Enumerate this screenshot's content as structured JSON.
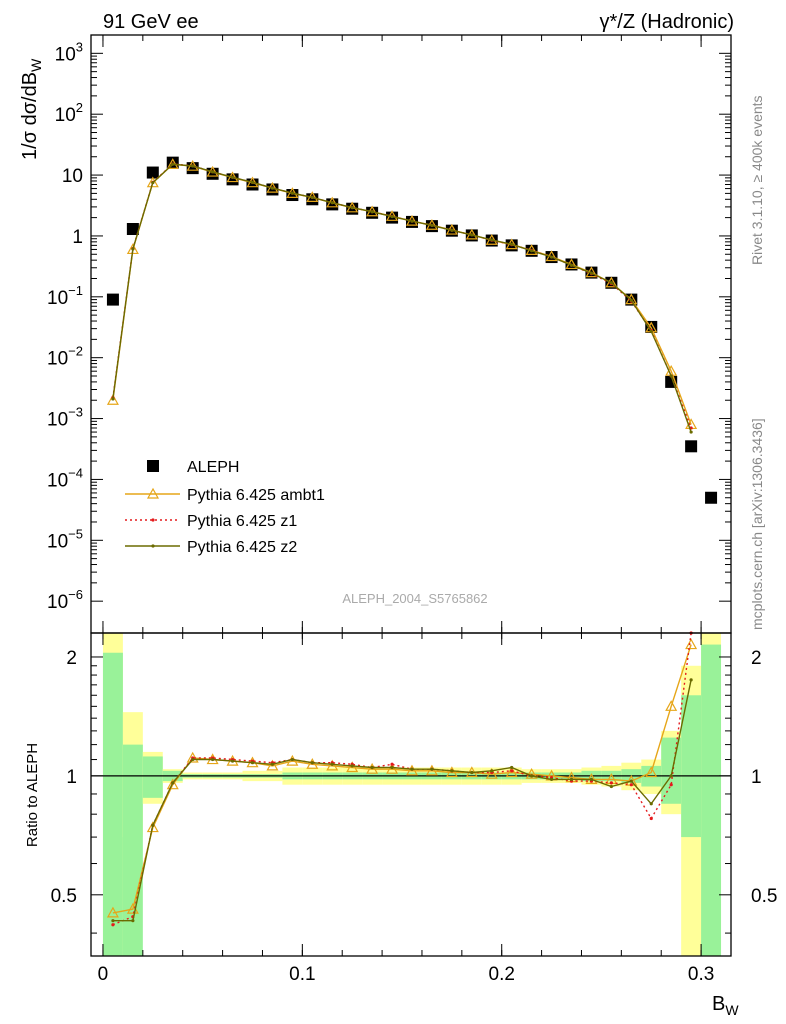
{
  "header": {
    "left": "91 GeV ee",
    "right": "γ*/Z (Hadronic)"
  },
  "side_texts": {
    "rivet": "Rivet 3.1.10, ≥ 400k events",
    "mcplots": "mcplots.cern.ch [arXiv:1306.3436]"
  },
  "analysis_id": "ALEPH_2004_S5765862",
  "top_panel": {
    "ylabel_main": "1/σ  dσ/dB",
    "ylabel_sub": "W",
    "yticks": [
      {
        "base": "10",
        "exp": "3",
        "v": 1000
      },
      {
        "base": "10",
        "exp": "2",
        "v": 100
      },
      {
        "base": "10",
        "exp": "",
        "v": 10
      },
      {
        "base": "1",
        "exp": "",
        "v": 1
      },
      {
        "base": "10",
        "exp": "−1",
        "v": 0.1
      },
      {
        "base": "10",
        "exp": "−2",
        "v": 0.01
      },
      {
        "base": "10",
        "exp": "−3",
        "v": 0.001
      },
      {
        "base": "10",
        "exp": "−4",
        "v": 0.0001
      },
      {
        "base": "10",
        "exp": "−5",
        "v": 1e-05
      },
      {
        "base": "10",
        "exp": "−6",
        "v": 1e-06
      }
    ]
  },
  "bottom_panel": {
    "ylabel": "Ratio to ALEPH",
    "yticks": [
      "2",
      "1",
      "0.5"
    ]
  },
  "x_axis": {
    "label_main": "B",
    "label_sub": "W",
    "ticks": [
      "0",
      "0.1",
      "0.2",
      "0.3"
    ]
  },
  "legend": [
    {
      "label": "ALEPH",
      "key": "data"
    },
    {
      "label": "Pythia 6.425 ambt1",
      "key": "ambt1"
    },
    {
      "label": "Pythia 6.425 z1",
      "key": "z1"
    },
    {
      "label": "Pythia 6.425 z2",
      "key": "z2"
    }
  ],
  "colors": {
    "data": "#000000",
    "ambt1": "#e6a619",
    "z1": "#e41a1c",
    "z2": "#6b6b00",
    "band_inner": "#99f299",
    "band_outer": "#ffff99"
  },
  "chart_data": {
    "type": "line",
    "x_range": [
      -0.006,
      0.315
    ],
    "y_range_log": [
      3e-07,
      2000
    ],
    "ratio_range": [
      0.35,
      2.3
    ],
    "x": [
      0.005,
      0.015,
      0.025,
      0.035,
      0.045,
      0.055,
      0.065,
      0.075,
      0.085,
      0.095,
      0.105,
      0.115,
      0.125,
      0.135,
      0.145,
      0.155,
      0.165,
      0.175,
      0.185,
      0.195,
      0.205,
      0.215,
      0.225,
      0.235,
      0.245,
      0.255,
      0.265,
      0.275,
      0.285,
      0.295,
      0.305
    ],
    "series": [
      {
        "name": "ALEPH",
        "key": "data",
        "values": [
          0.09,
          1.3,
          11,
          16,
          13,
          10.5,
          8.5,
          7,
          5.8,
          4.7,
          4.0,
          3.3,
          2.8,
          2.4,
          2.0,
          1.7,
          1.45,
          1.22,
          1.02,
          0.84,
          0.7,
          0.57,
          0.45,
          0.34,
          0.25,
          0.17,
          0.09,
          0.032,
          0.004,
          0.00035,
          5e-05
        ]
      },
      {
        "name": "Pythia 6.425 ambt1",
        "key": "ambt1",
        "values": [
          0.002,
          0.6,
          7.5,
          15,
          14,
          11.2,
          9.1,
          7.5,
          6.1,
          5.0,
          4.3,
          3.5,
          2.9,
          2.5,
          2.1,
          1.75,
          1.5,
          1.25,
          1.04,
          0.85,
          0.72,
          0.58,
          0.46,
          0.34,
          0.25,
          0.17,
          0.09,
          0.031,
          0.006,
          0.0008,
          null
        ],
        "ratio": [
          0.45,
          0.46,
          0.74,
          0.95,
          1.11,
          1.1,
          1.09,
          1.08,
          1.06,
          1.09,
          1.07,
          1.06,
          1.05,
          1.04,
          1.04,
          1.03,
          1.03,
          1.02,
          1.02,
          1.01,
          1.02,
          1.01,
          1.0,
          0.99,
          0.98,
          0.98,
          0.97,
          1.02,
          1.5,
          2.15,
          null
        ]
      },
      {
        "name": "Pythia 6.425 z1",
        "key": "z1",
        "values": [
          0.0022,
          0.62,
          7.6,
          15.2,
          14.2,
          11.3,
          9.2,
          7.6,
          6.15,
          5.05,
          4.3,
          3.52,
          2.93,
          2.5,
          2.1,
          1.75,
          1.49,
          1.24,
          1.04,
          0.85,
          0.72,
          0.58,
          0.45,
          0.33,
          0.24,
          0.165,
          0.085,
          0.028,
          0.005,
          0.0007,
          null
        ],
        "ratio": [
          0.42,
          0.44,
          0.75,
          0.96,
          1.11,
          1.11,
          1.1,
          1.09,
          1.08,
          1.1,
          1.08,
          1.08,
          1.07,
          1.05,
          1.07,
          1.04,
          1.04,
          1.03,
          1.02,
          1.02,
          1.03,
          1.0,
          0.99,
          0.97,
          0.97,
          0.96,
          0.95,
          0.78,
          0.95,
          2.3,
          null
        ]
      },
      {
        "name": "Pythia 6.425 z2",
        "key": "z2",
        "values": [
          0.0021,
          0.61,
          7.5,
          15.1,
          14.1,
          11.3,
          9.2,
          7.6,
          6.1,
          5.05,
          4.3,
          3.52,
          2.92,
          2.5,
          2.08,
          1.75,
          1.49,
          1.24,
          1.04,
          0.86,
          0.73,
          0.57,
          0.45,
          0.33,
          0.245,
          0.17,
          0.088,
          0.027,
          0.005,
          0.0006,
          null
        ],
        "ratio": [
          0.43,
          0.43,
          0.75,
          0.96,
          1.1,
          1.1,
          1.09,
          1.08,
          1.07,
          1.1,
          1.08,
          1.07,
          1.06,
          1.05,
          1.05,
          1.04,
          1.04,
          1.03,
          1.02,
          1.03,
          1.05,
          1.0,
          0.98,
          0.98,
          0.98,
          0.94,
          0.97,
          0.85,
          1.0,
          1.75,
          null
        ]
      }
    ],
    "ratio_bands": {
      "bins": [
        0.0,
        0.01,
        0.02,
        0.03,
        0.04,
        0.05,
        0.06,
        0.07,
        0.08,
        0.09,
        0.1,
        0.11,
        0.12,
        0.13,
        0.14,
        0.15,
        0.16,
        0.17,
        0.18,
        0.19,
        0.2,
        0.21,
        0.22,
        0.23,
        0.24,
        0.25,
        0.26,
        0.27,
        0.28,
        0.29,
        0.3,
        0.31
      ],
      "inner": [
        [
          0.3,
          2.05
        ],
        [
          0.3,
          1.2
        ],
        [
          0.88,
          1.12
        ],
        [
          0.97,
          1.03
        ],
        [
          0.99,
          1.01
        ],
        [
          0.99,
          1.01
        ],
        [
          0.99,
          1.01
        ],
        [
          0.99,
          1.01
        ],
        [
          0.99,
          1.01
        ],
        [
          0.98,
          1.02
        ],
        [
          0.98,
          1.02
        ],
        [
          0.98,
          1.02
        ],
        [
          0.98,
          1.02
        ],
        [
          0.98,
          1.02
        ],
        [
          0.98,
          1.02
        ],
        [
          0.98,
          1.02
        ],
        [
          0.98,
          1.02
        ],
        [
          0.98,
          1.02
        ],
        [
          0.98,
          1.02
        ],
        [
          0.98,
          1.02
        ],
        [
          0.98,
          1.02
        ],
        [
          0.98,
          1.02
        ],
        [
          0.98,
          1.02
        ],
        [
          0.98,
          1.02
        ],
        [
          0.97,
          1.03
        ],
        [
          0.97,
          1.03
        ],
        [
          0.96,
          1.04
        ],
        [
          0.94,
          1.06
        ],
        [
          0.85,
          1.25
        ],
        [
          0.7,
          1.6
        ],
        [
          0.3,
          2.15
        ]
      ],
      "outer": [
        [
          0.3,
          2.5
        ],
        [
          0.7,
          1.45
        ],
        [
          0.85,
          1.15
        ],
        [
          0.96,
          1.04
        ],
        [
          0.98,
          1.02
        ],
        [
          0.98,
          1.02
        ],
        [
          0.98,
          1.02
        ],
        [
          0.97,
          1.03
        ],
        [
          0.97,
          1.03
        ],
        [
          0.95,
          1.05
        ],
        [
          0.95,
          1.05
        ],
        [
          0.95,
          1.05
        ],
        [
          0.95,
          1.05
        ],
        [
          0.95,
          1.05
        ],
        [
          0.95,
          1.05
        ],
        [
          0.95,
          1.05
        ],
        [
          0.95,
          1.05
        ],
        [
          0.95,
          1.05
        ],
        [
          0.95,
          1.05
        ],
        [
          0.95,
          1.05
        ],
        [
          0.95,
          1.05
        ],
        [
          0.96,
          1.04
        ],
        [
          0.96,
          1.04
        ],
        [
          0.96,
          1.04
        ],
        [
          0.95,
          1.05
        ],
        [
          0.94,
          1.06
        ],
        [
          0.92,
          1.08
        ],
        [
          0.9,
          1.1
        ],
        [
          0.8,
          1.3
        ],
        [
          0.3,
          1.9
        ],
        [
          0.3,
          2.5
        ]
      ]
    }
  }
}
